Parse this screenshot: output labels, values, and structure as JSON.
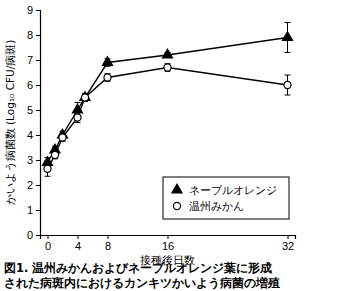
{
  "chart_data": {
    "type": "line",
    "title": [
      "図1. 温州みかんおよびネーブルオレンジ葉に形成",
      "された病斑内におけるカンキツかいよう病菌の増殖"
    ],
    "x_label": "接種後日数",
    "y_label": "かいよう病菌数 (Log₁₀ CFU/病斑)",
    "x": [
      0,
      1,
      2,
      4,
      5,
      8,
      16,
      32
    ],
    "series": [
      {
        "name": "ネーブルオレンジ",
        "color": "#000000",
        "marker": "triangle",
        "line_style": "solid",
        "values": [
          2.9,
          3.4,
          4.0,
          5.0,
          5.5,
          6.9,
          7.2,
          7.9
        ],
        "errors": [
          0.2,
          0.15,
          0.15,
          0.3,
          0.15,
          0.15,
          0.1,
          0.6
        ]
      },
      {
        "name": "温州みかん",
        "color": "#000000",
        "marker": "circle-open",
        "line_style": "solid",
        "values": [
          2.65,
          3.2,
          3.9,
          4.7,
          5.5,
          6.3,
          6.7,
          6.0
        ],
        "errors": [
          0.3,
          0.15,
          0.15,
          0.2,
          0.15,
          0.15,
          0.15,
          0.4
        ]
      }
    ],
    "xlim": [
      -1,
      33
    ],
    "xticks": [
      0,
      4,
      8,
      16,
      32
    ],
    "ylim": [
      0,
      9
    ],
    "yticks": [
      0,
      1,
      2,
      3,
      4,
      5,
      6,
      7,
      8,
      9
    ],
    "grid": false,
    "legend": "lower right"
  }
}
